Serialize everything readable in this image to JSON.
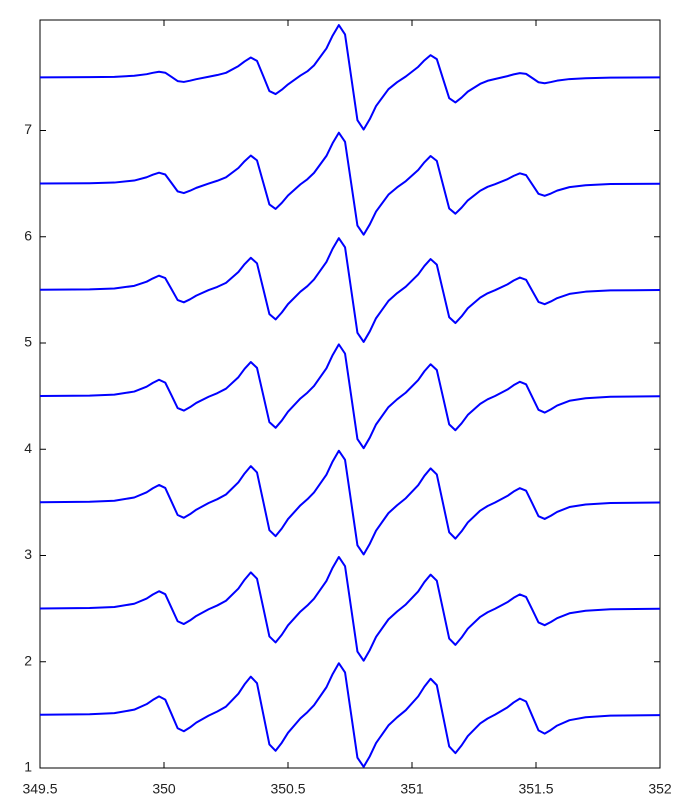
{
  "chart_data": {
    "type": "line",
    "x": [
      349.5,
      349.7,
      349.8,
      349.88,
      349.93,
      349.955,
      349.98,
      350.005,
      350.03,
      350.055,
      350.08,
      350.105,
      350.13,
      350.18,
      350.215,
      350.25,
      350.3,
      350.325,
      350.35,
      350.375,
      350.4,
      350.425,
      350.45,
      350.475,
      350.5,
      350.55,
      350.578,
      350.605,
      350.655,
      350.68,
      350.705,
      350.73,
      350.755,
      350.78,
      350.805,
      350.83,
      350.855,
      350.905,
      350.94,
      350.975,
      351.025,
      351.05,
      351.075,
      351.1,
      351.125,
      351.15,
      351.175,
      351.2,
      351.225,
      351.275,
      351.305,
      351.335,
      351.385,
      351.41,
      351.435,
      351.46,
      351.485,
      351.51,
      351.535,
      351.56,
      351.585,
      351.635,
      351.7,
      351.8,
      352
    ],
    "series": [
      {
        "color": "#0000ff",
        "values": [
          7.5,
          7.502,
          7.505,
          7.515,
          7.53,
          7.543,
          7.553,
          7.544,
          7.505,
          7.465,
          7.457,
          7.469,
          7.483,
          7.506,
          7.522,
          7.543,
          7.606,
          7.65,
          7.687,
          7.655,
          7.514,
          7.371,
          7.343,
          7.384,
          7.434,
          7.517,
          7.557,
          7.613,
          7.772,
          7.893,
          7.992,
          7.904,
          7.501,
          7.097,
          7.009,
          7.108,
          7.23,
          7.389,
          7.455,
          7.508,
          7.599,
          7.66,
          7.709,
          7.672,
          7.488,
          7.304,
          7.264,
          7.31,
          7.366,
          7.439,
          7.468,
          7.485,
          7.512,
          7.528,
          7.54,
          7.533,
          7.494,
          7.454,
          7.445,
          7.456,
          7.469,
          7.484,
          7.492,
          7.498,
          7.5
        ]
      },
      {
        "color": "#0000ff",
        "values": [
          6.501,
          6.504,
          6.51,
          6.529,
          6.56,
          6.584,
          6.603,
          6.586,
          6.507,
          6.427,
          6.411,
          6.433,
          6.46,
          6.501,
          6.527,
          6.559,
          6.647,
          6.711,
          6.764,
          6.719,
          6.512,
          6.304,
          6.262,
          6.319,
          6.388,
          6.493,
          6.541,
          6.601,
          6.761,
          6.881,
          6.979,
          6.894,
          6.5,
          6.105,
          6.019,
          6.117,
          6.237,
          6.396,
          6.465,
          6.523,
          6.628,
          6.701,
          6.76,
          6.714,
          6.49,
          6.266,
          6.217,
          6.274,
          6.342,
          6.433,
          6.47,
          6.495,
          6.542,
          6.573,
          6.597,
          6.58,
          6.492,
          6.404,
          6.385,
          6.407,
          6.434,
          6.467,
          6.485,
          6.496,
          6.499
        ]
      },
      {
        "color": "#0000ff",
        "values": [
          5.501,
          5.505,
          5.513,
          5.538,
          5.577,
          5.608,
          5.634,
          5.611,
          5.508,
          5.404,
          5.383,
          5.411,
          5.446,
          5.498,
          5.528,
          5.566,
          5.668,
          5.742,
          5.802,
          5.75,
          5.512,
          5.272,
          5.222,
          5.287,
          5.366,
          5.483,
          5.535,
          5.598,
          5.763,
          5.887,
          5.987,
          5.901,
          5.499,
          5.096,
          5.01,
          5.11,
          5.233,
          5.396,
          5.469,
          5.53,
          5.645,
          5.725,
          5.79,
          5.738,
          5.49,
          5.242,
          5.188,
          5.251,
          5.327,
          5.427,
          5.468,
          5.497,
          5.552,
          5.588,
          5.616,
          5.595,
          5.491,
          5.387,
          5.365,
          5.391,
          5.422,
          5.462,
          5.483,
          5.495,
          5.499
        ]
      },
      {
        "color": "#0000ff",
        "values": [
          4.501,
          4.505,
          4.514,
          4.543,
          4.589,
          4.625,
          4.654,
          4.627,
          4.509,
          4.388,
          4.364,
          4.396,
          4.436,
          4.494,
          4.528,
          4.57,
          4.678,
          4.757,
          4.821,
          4.766,
          4.511,
          4.255,
          4.202,
          4.27,
          4.354,
          4.478,
          4.532,
          4.596,
          4.762,
          4.886,
          4.987,
          4.9,
          4.499,
          4.096,
          4.01,
          4.11,
          4.233,
          4.397,
          4.47,
          4.533,
          4.651,
          4.734,
          4.8,
          4.746,
          4.491,
          4.234,
          4.179,
          4.244,
          4.323,
          4.427,
          4.47,
          4.501,
          4.562,
          4.603,
          4.635,
          4.611,
          4.491,
          4.371,
          4.345,
          4.375,
          4.411,
          4.456,
          4.48,
          4.494,
          4.499
        ]
      },
      {
        "color": "#0000ff",
        "values": [
          3.501,
          3.506,
          3.515,
          3.546,
          3.595,
          3.633,
          3.664,
          3.636,
          3.509,
          3.381,
          3.355,
          3.389,
          3.431,
          3.494,
          3.53,
          3.574,
          3.689,
          3.772,
          3.841,
          3.782,
          3.511,
          3.238,
          3.182,
          3.254,
          3.343,
          3.472,
          3.529,
          3.594,
          3.761,
          3.885,
          3.986,
          3.9,
          3.499,
          3.096,
          3.01,
          3.111,
          3.234,
          3.399,
          3.473,
          3.539,
          3.662,
          3.75,
          3.82,
          3.763,
          3.491,
          3.218,
          3.159,
          3.228,
          3.311,
          3.422,
          3.466,
          3.499,
          3.561,
          3.602,
          3.634,
          3.61,
          3.491,
          3.37,
          3.344,
          3.374,
          3.41,
          3.456,
          3.48,
          3.494,
          3.499
        ]
      },
      {
        "color": "#0000ff",
        "values": [
          2.501,
          2.506,
          2.515,
          2.546,
          2.595,
          2.633,
          2.664,
          2.636,
          2.509,
          2.381,
          2.355,
          2.389,
          2.431,
          2.494,
          2.53,
          2.574,
          2.689,
          2.772,
          2.841,
          2.782,
          2.511,
          2.238,
          2.182,
          2.254,
          2.343,
          2.472,
          2.529,
          2.594,
          2.761,
          2.885,
          2.986,
          2.9,
          2.499,
          2.096,
          2.01,
          2.111,
          2.234,
          2.399,
          2.473,
          2.539,
          2.662,
          2.75,
          2.82,
          2.763,
          2.491,
          2.218,
          2.159,
          2.228,
          2.311,
          2.422,
          2.466,
          2.499,
          2.561,
          2.602,
          2.634,
          2.61,
          2.491,
          2.37,
          2.344,
          2.374,
          2.41,
          2.456,
          2.48,
          2.494,
          2.499
        ]
      },
      {
        "color": "#0000ff",
        "values": [
          1.501,
          1.506,
          1.516,
          1.549,
          1.601,
          1.641,
          1.674,
          1.644,
          1.51,
          1.374,
          1.346,
          1.382,
          1.427,
          1.493,
          1.532,
          1.578,
          1.699,
          1.788,
          1.86,
          1.798,
          1.51,
          1.222,
          1.162,
          1.238,
          1.331,
          1.467,
          1.525,
          1.591,
          1.76,
          1.884,
          1.986,
          1.9,
          1.499,
          1.097,
          1.011,
          1.111,
          1.235,
          1.401,
          1.477,
          1.544,
          1.674,
          1.766,
          1.84,
          1.78,
          1.491,
          1.203,
          1.14,
          1.213,
          1.301,
          1.419,
          1.466,
          1.502,
          1.571,
          1.617,
          1.653,
          1.626,
          1.49,
          1.354,
          1.324,
          1.358,
          1.399,
          1.45,
          1.478,
          1.493,
          1.498
        ]
      }
    ],
    "xlim": [
      349.5,
      352
    ],
    "ylim": [
      1,
      8.04
    ],
    "xticks": [
      349.5,
      350,
      350.5,
      351,
      351.5,
      352
    ],
    "yticks": [
      1,
      2,
      3,
      4,
      5,
      6,
      7
    ],
    "grid": false
  }
}
